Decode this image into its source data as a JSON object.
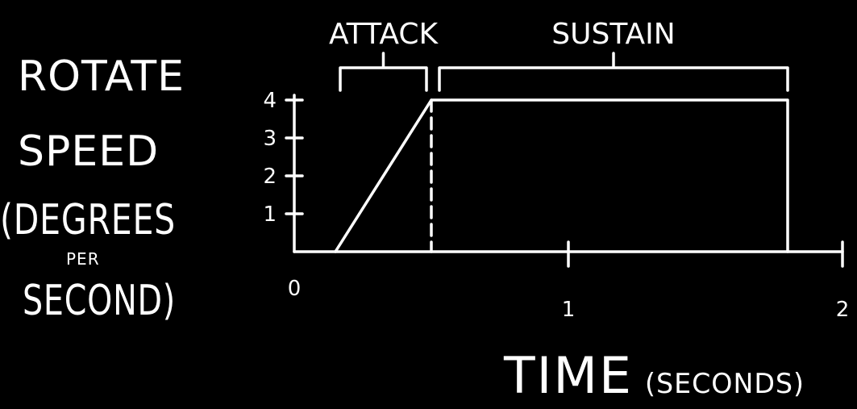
{
  "chart_data": {
    "type": "line",
    "ylabel": [
      "ROTATE",
      "SPEED",
      "(DEGREES",
      "PER",
      "SECOND)"
    ],
    "xlabel_main": "TIME",
    "xlabel_unit": "(SECONDS)",
    "xlim": [
      0,
      2
    ],
    "ylim": [
      0,
      4
    ],
    "x_ticks": [
      {
        "value": 0,
        "label": "0"
      },
      {
        "value": 1,
        "label": "1"
      },
      {
        "value": 2,
        "label": "2"
      }
    ],
    "y_ticks": [
      {
        "value": 1,
        "label": "1"
      },
      {
        "value": 2,
        "label": "2"
      },
      {
        "value": 3,
        "label": "3"
      },
      {
        "value": 4,
        "label": "4"
      }
    ],
    "series": [
      {
        "x": [
          0.15,
          0.5,
          1.8,
          1.8
        ],
        "y": [
          0,
          4,
          4,
          0
        ]
      }
    ],
    "marker_x": 0.5,
    "segments": [
      {
        "label": "ATTACK",
        "x_start": 0.15,
        "x_end": 0.5
      },
      {
        "label": "SUSTAIN",
        "x_start": 0.5,
        "x_end": 1.8
      }
    ],
    "grid": false
  }
}
